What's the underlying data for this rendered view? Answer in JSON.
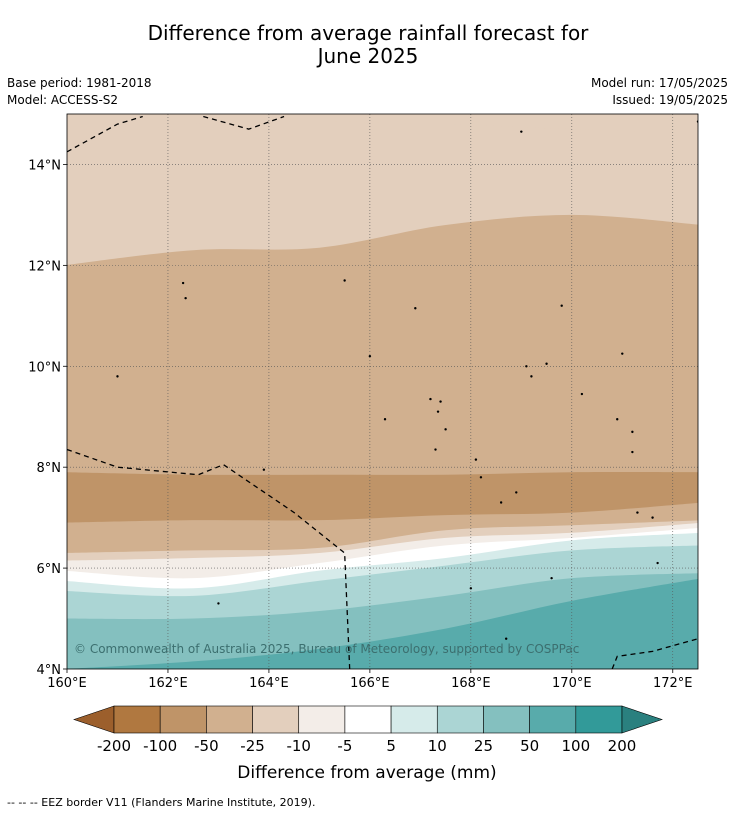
{
  "header": {
    "title_line1": "Difference from average rainfall forecast for",
    "title_line2": "June 2025",
    "base_period": "Base period: 1981-2018",
    "model": "Model: ACCESS-S2",
    "model_run": "Model run: 17/05/2025",
    "issued": "Issued: 19/05/2025"
  },
  "copyright": "© Commonwealth of Australia 2025, Bureau of Meteorology, supported by COSPPac",
  "footnote": "--  --  -- EEZ border V11 (Flanders Marine Institute, 2019).",
  "chart_data": {
    "type": "heatmap",
    "title": "Difference from average rainfall forecast for June 2025",
    "xlim": [
      160,
      172.5
    ],
    "ylim": [
      4,
      15
    ],
    "x_ticks": [
      160,
      162,
      164,
      166,
      168,
      170,
      172
    ],
    "x_tick_labels": [
      "160°E",
      "162°E",
      "164°E",
      "166°E",
      "168°E",
      "170°E",
      "172°E"
    ],
    "y_ticks": [
      4,
      6,
      8,
      10,
      12,
      14
    ],
    "y_tick_labels": [
      "4°N",
      "6°N",
      "8°N",
      "10°N",
      "12°N",
      "14°N"
    ],
    "grid": true,
    "colorbar": {
      "label": "Difference from average (mm)",
      "tick_labels": [
        "-200",
        "-100",
        "-50",
        "-25",
        "-10",
        "-5",
        "5",
        "10",
        "25",
        "50",
        "100",
        "200"
      ],
      "colors": [
        "#9c5f2c",
        "#b07840",
        "#bf9468",
        "#d1b08f",
        "#e3cfbd",
        "#f3ede8",
        "#ffffff",
        "#d6ebea",
        "#abd5d4",
        "#84c0bf",
        "#58abab",
        "#329a99",
        "#2a807f"
      ],
      "extend": "both"
    },
    "bands": [
      {
        "range": "-25 to -10",
        "color": "#e3cfbd",
        "boundary_lat": [
          14.5,
          14.8,
          14.85,
          14.8,
          14.7,
          14.6
        ]
      },
      {
        "range": "-50 to -25",
        "color": "#d1b08f",
        "boundary_lat": [
          12.0,
          12.3,
          12.35,
          12.8,
          13.0,
          12.8
        ]
      },
      {
        "range": "-100 to -50",
        "color": "#bf9468",
        "boundary_lat": [
          7.9,
          7.85,
          7.85,
          7.85,
          7.9,
          7.9
        ]
      },
      {
        "range": "-50 to -25",
        "color": "#d1b08f",
        "boundary_lat": [
          6.9,
          6.95,
          6.95,
          7.05,
          7.1,
          7.3
        ]
      },
      {
        "range": "-25 to -10",
        "color": "#e3cfbd",
        "boundary_lat": [
          6.3,
          6.35,
          6.4,
          6.75,
          6.85,
          6.95
        ]
      },
      {
        "range": "-10 to -5",
        "color": "#f3ede8",
        "boundary_lat": [
          6.15,
          6.2,
          6.3,
          6.6,
          6.7,
          6.9
        ]
      },
      {
        "range": "-5 to 5",
        "color": "#ffffff",
        "boundary_lat": [
          5.95,
          5.8,
          6.1,
          6.45,
          6.6,
          6.8
        ]
      },
      {
        "range": "5 to 10",
        "color": "#d6ebea",
        "boundary_lat": [
          5.75,
          5.6,
          5.95,
          6.2,
          6.55,
          6.7
        ]
      },
      {
        "range": "10 to 25",
        "color": "#abd5d4",
        "boundary_lat": [
          5.55,
          5.45,
          5.75,
          6.05,
          6.35,
          6.45
        ]
      },
      {
        "range": "25 to 50",
        "color": "#84c0bf",
        "boundary_lat": [
          5.0,
          5.0,
          5.15,
          5.45,
          5.8,
          5.9
        ]
      },
      {
        "range": "50 to 100",
        "color": "#58abab",
        "boundary_lat": [
          4.0,
          4.15,
          4.4,
          4.8,
          5.35,
          5.8
        ]
      }
    ],
    "band_lon": [
      160,
      162.5,
      165,
      167.5,
      170,
      172.5
    ],
    "eez_borders": [
      [
        [
          160,
          14.25
        ],
        [
          161,
          14.8
        ],
        [
          161.5,
          14.95
        ]
      ],
      [
        [
          162.7,
          14.95
        ],
        [
          163.6,
          14.7
        ],
        [
          164.3,
          14.95
        ]
      ],
      [
        [
          160,
          8.35
        ],
        [
          161,
          8.0
        ],
        [
          162.6,
          7.85
        ],
        [
          163.1,
          8.05
        ],
        [
          164.5,
          7.1
        ],
        [
          165.5,
          6.3
        ],
        [
          165.6,
          4.0
        ]
      ],
      [
        [
          170.8,
          4.0
        ],
        [
          170.9,
          4.25
        ],
        [
          171.6,
          4.35
        ],
        [
          172.5,
          4.6
        ]
      ]
    ],
    "islands": [
      [
        162.3,
        11.65
      ],
      [
        162.35,
        11.35
      ],
      [
        163,
        5.3
      ],
      [
        163.9,
        7.95
      ],
      [
        165.5,
        11.7
      ],
      [
        166,
        10.2
      ],
      [
        166.9,
        11.15
      ],
      [
        167.2,
        9.35
      ],
      [
        167.4,
        9.3
      ],
      [
        167.35,
        9.1
      ],
      [
        167.3,
        8.35
      ],
      [
        167.5,
        8.75
      ],
      [
        166.3,
        8.95
      ],
      [
        168.1,
        8.15
      ],
      [
        168.2,
        7.8
      ],
      [
        168.6,
        7.3
      ],
      [
        168.9,
        7.5
      ],
      [
        169.1,
        10.0
      ],
      [
        169.2,
        9.8
      ],
      [
        169.5,
        10.05
      ],
      [
        169.8,
        11.2
      ],
      [
        170.2,
        9.45
      ],
      [
        171,
        10.25
      ],
      [
        171.2,
        8.7
      ],
      [
        170.9,
        8.95
      ],
      [
        171.2,
        8.3
      ],
      [
        171.3,
        7.1
      ],
      [
        171.6,
        7.0
      ],
      [
        171.7,
        6.1
      ],
      [
        169.6,
        5.8
      ],
      [
        168,
        5.6
      ],
      [
        168.7,
        4.6
      ],
      [
        169.0,
        14.65
      ],
      [
        172.5,
        14.85
      ],
      [
        161,
        9.8
      ]
    ]
  }
}
